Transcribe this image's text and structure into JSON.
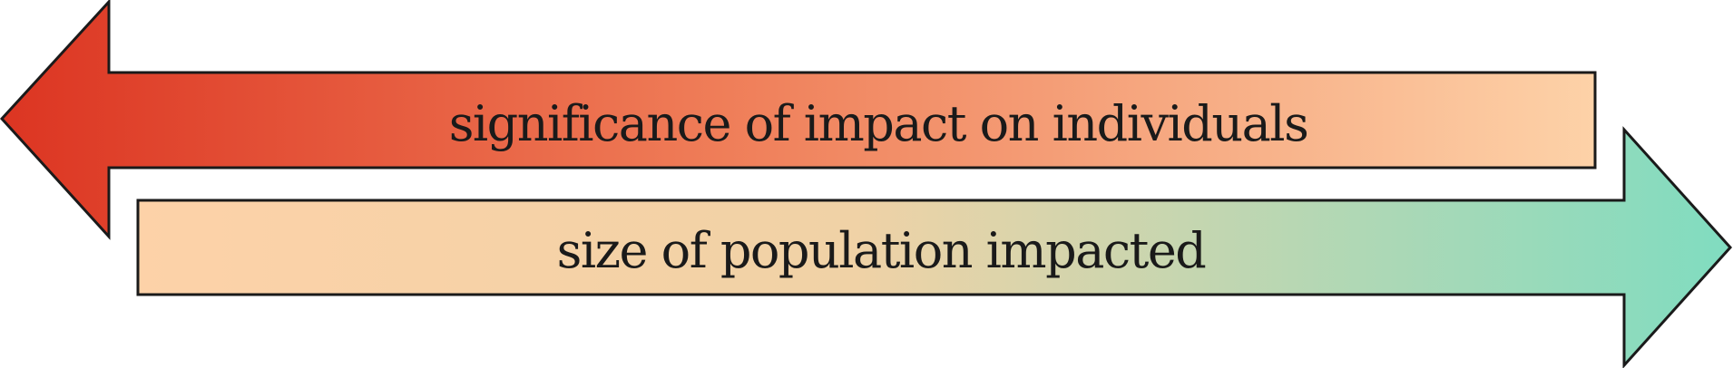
{
  "arrows": [
    {
      "label": "significance of impact on individuals",
      "direction": "left",
      "gradient": [
        "#dc3522",
        "#fdd2a8"
      ]
    },
    {
      "label": "size of population impacted",
      "direction": "right",
      "gradient": [
        "#fdd2a8",
        "#f0d2a6",
        "#80dcc0"
      ]
    }
  ],
  "colors": {
    "outline": "#1a1a1a",
    "text": "#1a1a1a"
  }
}
